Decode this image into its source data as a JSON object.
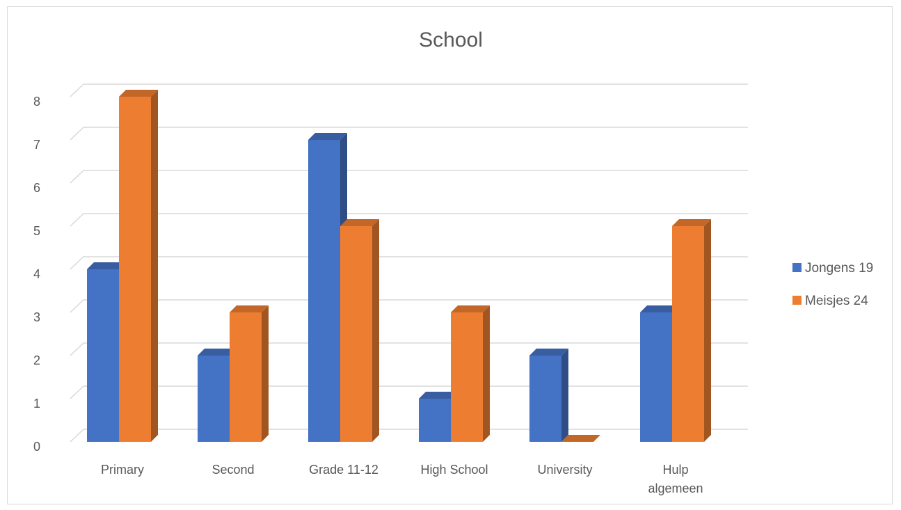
{
  "chart_data": {
    "type": "bar",
    "title": "School",
    "xlabel": "",
    "ylabel": "",
    "ylim": [
      0,
      8
    ],
    "yticks": [
      0,
      1,
      2,
      3,
      4,
      5,
      6,
      7,
      8
    ],
    "grid": true,
    "legend_position": "right",
    "style": "3d-clustered-column",
    "categories": [
      [
        "Primary"
      ],
      [
        "Second"
      ],
      [
        "Grade 11-12"
      ],
      [
        "High School"
      ],
      [
        "University"
      ],
      [
        "Hulp",
        "algemeen"
      ]
    ],
    "series": [
      {
        "name": "Jongens 19",
        "color": "#4472c4",
        "values": [
          4,
          2,
          7,
          1,
          2,
          3
        ]
      },
      {
        "name": "Meisjes 24",
        "color": "#ed7d31",
        "values": [
          8,
          3,
          5,
          3,
          0,
          5
        ]
      }
    ]
  }
}
